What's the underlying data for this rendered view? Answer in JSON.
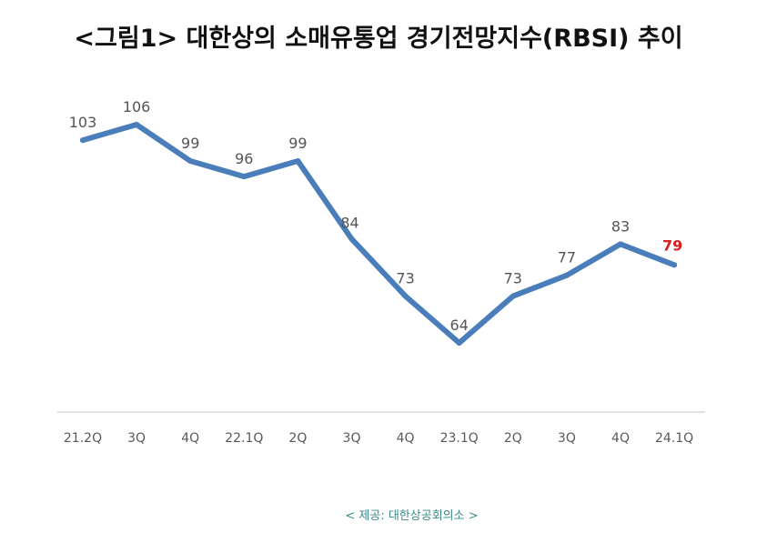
{
  "title": "<그림1> 대한상의 소매유통업 경기전망지수(RBSI) 추이",
  "source": "< 제공: 대한상공회의소 >",
  "chart_data": {
    "type": "line",
    "categories": [
      "21.2Q",
      "3Q",
      "4Q",
      "22.1Q",
      "2Q",
      "3Q",
      "4Q",
      "23.1Q",
      "2Q",
      "3Q",
      "4Q",
      "24.1Q"
    ],
    "series": [
      {
        "values": [
          103,
          106,
          99,
          96,
          99,
          84,
          73,
          64,
          73,
          77,
          83,
          79
        ]
      }
    ],
    "title": "",
    "xlabel": "",
    "ylabel": "",
    "ylim": [
      50,
      110
    ],
    "grid": false,
    "legend": "none",
    "colors": {
      "line": "#4a7ebb",
      "label": "#555555",
      "highlight_label": "#d42020",
      "axis": "#d9d9d9",
      "tick": "#595959"
    }
  }
}
